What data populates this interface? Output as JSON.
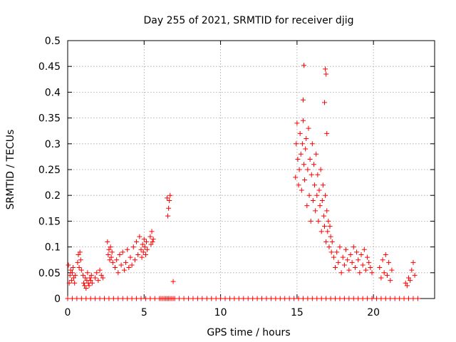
{
  "chart_data": {
    "type": "scatter",
    "title": "Day 255 of 2021, SRMTID for receiver djig",
    "xlabel": "GPS time / hours",
    "ylabel": "SRMTID / TECUs",
    "xlim": [
      0,
      24
    ],
    "ylim": [
      0,
      0.5
    ],
    "x_ticks": [
      0,
      5,
      10,
      15,
      20
    ],
    "x_tick_labels": [
      "0",
      "5",
      "10",
      "15",
      "20"
    ],
    "y_ticks": [
      0,
      0.05,
      0.1,
      0.15,
      0.2,
      0.25,
      0.3,
      0.35,
      0.4,
      0.45,
      0.5
    ],
    "y_tick_labels": [
      "0",
      "0.05",
      "0.1",
      "0.15",
      "0.2",
      "0.25",
      "0.3",
      "0.35",
      "0.4",
      "0.45",
      "0.5"
    ],
    "grid": true,
    "marker": "+",
    "color": "#ff0000",
    "series": [
      {
        "name": "SRMTID",
        "x": [
          0.05,
          0.1,
          0.15,
          0.2,
          0.25,
          0.3,
          0.35,
          0.4,
          0.45,
          0.5,
          0.65,
          0.7,
          0.75,
          0.8,
          0.85,
          0.9,
          1.0,
          1.05,
          1.1,
          1.15,
          1.2,
          1.25,
          1.3,
          1.35,
          1.4,
          1.45,
          1.5,
          1.55,
          1.6,
          1.8,
          1.9,
          2.0,
          2.1,
          2.2,
          2.3,
          2.6,
          2.65,
          2.7,
          2.75,
          2.8,
          2.85,
          2.9,
          2.95,
          3.1,
          3.2,
          3.3,
          3.4,
          3.5,
          3.6,
          3.7,
          3.8,
          3.9,
          4.0,
          4.1,
          4.2,
          4.3,
          4.4,
          4.5,
          4.6,
          4.7,
          4.8,
          4.85,
          4.9,
          4.95,
          5.0,
          5.05,
          5.1,
          5.15,
          5.2,
          5.4,
          5.45,
          5.5,
          5.55,
          5.6,
          6.5,
          6.55,
          6.6,
          6.65,
          6.7,
          6.9,
          14.9,
          14.95,
          15.0,
          15.05,
          15.1,
          15.15,
          15.2,
          15.25,
          15.3,
          15.35,
          15.4,
          15.45,
          15.5,
          15.55,
          15.6,
          15.65,
          15.7,
          15.75,
          15.8,
          15.85,
          15.9,
          15.95,
          16.0,
          16.05,
          16.1,
          16.15,
          16.2,
          16.25,
          16.3,
          16.35,
          16.4,
          16.45,
          16.5,
          16.55,
          16.6,
          16.65,
          16.7,
          16.75,
          16.8,
          16.85,
          16.9,
          16.95,
          17.0,
          17.05,
          17.1,
          17.15,
          17.2,
          17.25,
          17.3,
          17.4,
          17.5,
          17.6,
          17.7,
          17.8,
          17.9,
          18.0,
          18.1,
          18.2,
          18.3,
          18.4,
          18.5,
          18.6,
          18.7,
          18.8,
          18.9,
          19.0,
          19.1,
          19.2,
          19.3,
          19.4,
          19.5,
          19.6,
          19.7,
          19.8,
          19.9,
          20.4,
          20.5,
          20.6,
          20.7,
          20.8,
          20.9,
          21.0,
          21.1,
          21.2,
          22.1,
          22.2,
          22.3,
          22.4,
          22.5,
          22.6,
          22.7,
          15.45,
          16.85,
          16.9,
          15.4,
          16.8,
          16.95,
          0.0,
          0.3,
          0.6,
          0.9,
          1.2,
          1.5,
          1.8,
          2.1,
          2.4,
          2.7,
          3.0,
          3.3,
          3.6,
          3.9,
          4.2,
          4.5,
          4.8,
          5.1,
          5.4,
          5.7,
          6.0,
          6.1,
          6.2,
          6.3,
          6.4,
          6.5,
          6.6,
          6.7,
          6.8,
          6.9,
          7.0,
          7.3,
          7.6,
          7.9,
          8.2,
          8.5,
          8.8,
          9.1,
          9.4,
          9.7,
          10.0,
          10.3,
          10.6,
          10.9,
          11.2,
          11.5,
          11.8,
          12.1,
          12.4,
          12.7,
          13.0,
          13.3,
          13.6,
          13.9,
          14.2,
          14.5,
          14.8,
          15.1,
          15.4,
          15.7,
          16.0,
          16.3,
          16.6,
          16.9,
          17.2,
          17.5,
          17.8,
          18.1,
          18.4,
          18.7,
          19.0,
          19.3,
          19.6,
          19.9,
          20.2,
          20.5,
          20.8,
          21.1,
          21.4,
          21.7,
          22.0,
          22.3,
          22.6,
          22.9
        ],
        "y": [
          0.065,
          0.03,
          0.045,
          0.055,
          0.035,
          0.05,
          0.06,
          0.04,
          0.03,
          0.045,
          0.07,
          0.085,
          0.06,
          0.09,
          0.075,
          0.055,
          0.045,
          0.03,
          0.025,
          0.04,
          0.02,
          0.035,
          0.05,
          0.03,
          0.025,
          0.04,
          0.035,
          0.045,
          0.03,
          0.04,
          0.05,
          0.035,
          0.055,
          0.045,
          0.04,
          0.11,
          0.085,
          0.095,
          0.075,
          0.1,
          0.08,
          0.09,
          0.07,
          0.06,
          0.075,
          0.05,
          0.085,
          0.065,
          0.09,
          0.055,
          0.07,
          0.095,
          0.06,
          0.08,
          0.065,
          0.1,
          0.075,
          0.11,
          0.085,
          0.12,
          0.095,
          0.08,
          0.105,
          0.09,
          0.115,
          0.1,
          0.085,
          0.11,
          0.095,
          0.12,
          0.105,
          0.13,
          0.11,
          0.115,
          0.195,
          0.16,
          0.175,
          0.19,
          0.2,
          0.033,
          0.235,
          0.3,
          0.34,
          0.27,
          0.22,
          0.25,
          0.32,
          0.28,
          0.21,
          0.3,
          0.345,
          0.26,
          0.23,
          0.29,
          0.31,
          0.18,
          0.25,
          0.33,
          0.2,
          0.27,
          0.15,
          0.24,
          0.3,
          0.19,
          0.26,
          0.22,
          0.17,
          0.28,
          0.2,
          0.24,
          0.15,
          0.21,
          0.18,
          0.25,
          0.13,
          0.19,
          0.22,
          0.16,
          0.14,
          0.2,
          0.11,
          0.17,
          0.13,
          0.15,
          0.1,
          0.14,
          0.12,
          0.09,
          0.11,
          0.08,
          0.06,
          0.09,
          0.07,
          0.1,
          0.05,
          0.08,
          0.065,
          0.095,
          0.075,
          0.055,
          0.085,
          0.07,
          0.1,
          0.06,
          0.09,
          0.075,
          0.05,
          0.085,
          0.065,
          0.095,
          0.055,
          0.08,
          0.07,
          0.06,
          0.05,
          0.06,
          0.04,
          0.075,
          0.05,
          0.085,
          0.045,
          0.07,
          0.035,
          0.055,
          0.03,
          0.025,
          0.04,
          0.035,
          0.055,
          0.07,
          0.045,
          0.452,
          0.445,
          0.435,
          0.385,
          0.38,
          0.32,
          0,
          0,
          0,
          0,
          0,
          0,
          0,
          0,
          0,
          0,
          0,
          0,
          0,
          0,
          0,
          0,
          0,
          0,
          0,
          0,
          0,
          0,
          0,
          0,
          0,
          0,
          0,
          0,
          0,
          0,
          0,
          0,
          0,
          0,
          0,
          0,
          0,
          0,
          0,
          0,
          0,
          0,
          0,
          0,
          0,
          0,
          0,
          0,
          0,
          0,
          0,
          0,
          0,
          0,
          0,
          0,
          0,
          0,
          0,
          0,
          0,
          0,
          0,
          0,
          0,
          0,
          0,
          0,
          0,
          0,
          0,
          0,
          0,
          0,
          0,
          0,
          0,
          0,
          0,
          0,
          0,
          0,
          0,
          0
        ]
      }
    ]
  }
}
